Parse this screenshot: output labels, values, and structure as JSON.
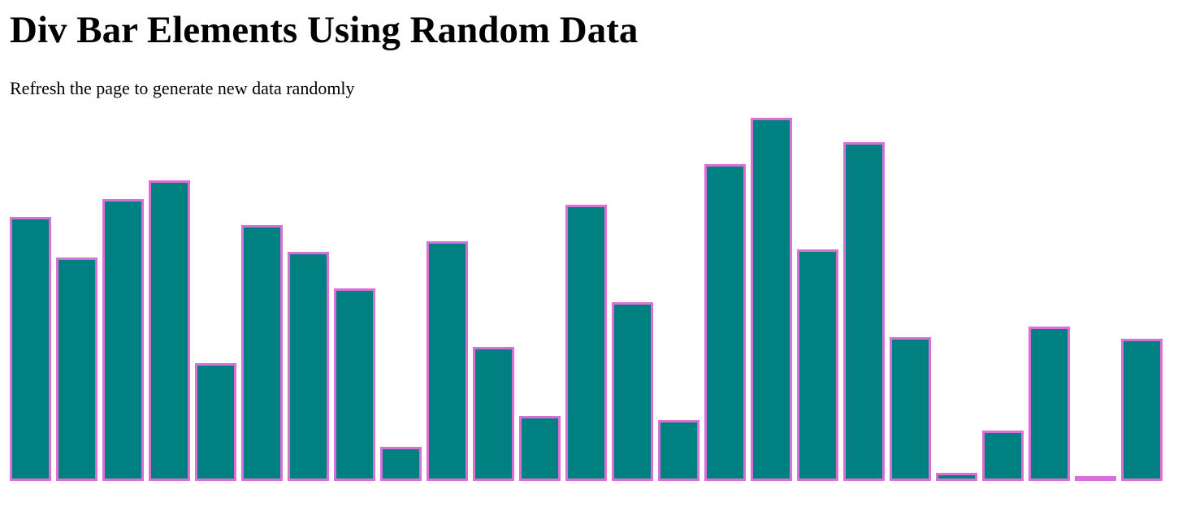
{
  "page": {
    "title": "Div Bar Elements Using Random Data",
    "subtitle": "Refresh the page to generate new data randomly"
  },
  "colors": {
    "bar_fill": "#008080",
    "bar_border": "#da70d6"
  },
  "chart_data": {
    "type": "bar",
    "values": [
      65,
      55,
      69.5,
      74,
      29,
      63,
      56.5,
      47.5,
      8.5,
      59,
      33,
      16,
      68,
      44,
      15,
      78,
      89.5,
      57,
      83.5,
      35.5,
      2,
      12.5,
      38,
      1,
      35
    ]
  }
}
